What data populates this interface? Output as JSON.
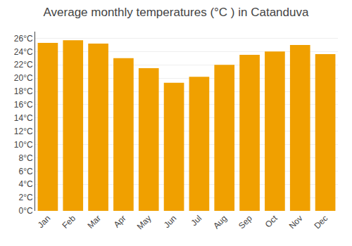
{
  "chart_data": {
    "type": "bar",
    "title": "Average monthly temperatures (°C ) in Catanduva",
    "categories": [
      "Jan",
      "Feb",
      "Mar",
      "Apr",
      "May",
      "Jun",
      "Jul",
      "Aug",
      "Sep",
      "Oct",
      "Nov",
      "Dec"
    ],
    "values": [
      25.3,
      25.7,
      25.2,
      23.0,
      21.5,
      19.3,
      20.2,
      22.0,
      23.5,
      24.0,
      25.0,
      23.6
    ],
    "color": "#F0A000",
    "ylim": [
      0,
      27
    ],
    "yticks": [
      {
        "value": 0,
        "label": "0°C"
      },
      {
        "value": 2,
        "label": "2°C"
      },
      {
        "value": 4,
        "label": "4°C"
      },
      {
        "value": 6,
        "label": "6°C"
      },
      {
        "value": 8,
        "label": "8°C"
      },
      {
        "value": 10,
        "label": "10°C"
      },
      {
        "value": 12,
        "label": "12°C"
      },
      {
        "value": 14,
        "label": "14°C"
      },
      {
        "value": 16,
        "label": "16°C"
      },
      {
        "value": 18,
        "label": "18°C"
      },
      {
        "value": 20,
        "label": "20°C"
      },
      {
        "value": 22,
        "label": "22°C"
      },
      {
        "value": 24,
        "label": "24°C"
      },
      {
        "value": 26,
        "label": "26°C"
      }
    ],
    "grid": true
  }
}
